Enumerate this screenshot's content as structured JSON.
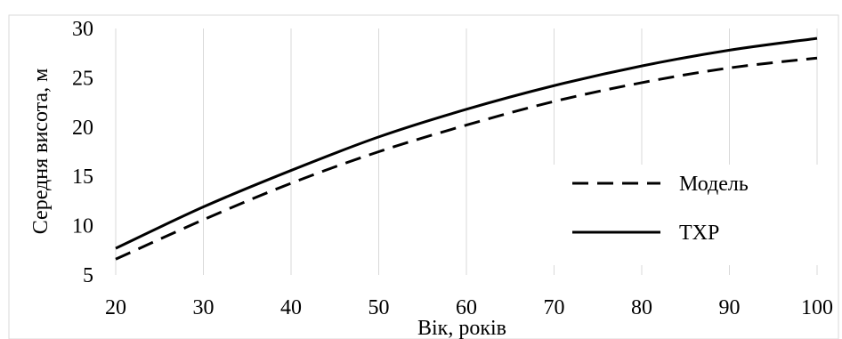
{
  "chart_data": {
    "type": "line",
    "title": "",
    "xlabel": "Вік, років",
    "ylabel": "Середня висота, м",
    "x": [
      20,
      30,
      40,
      50,
      60,
      70,
      80,
      90,
      100
    ],
    "series": [
      {
        "name": "Модель",
        "style": "dashed",
        "color": "#000000",
        "values": [
          6.6,
          10.6,
          14.3,
          17.5,
          20.2,
          22.6,
          24.5,
          26.0,
          27.0
        ]
      },
      {
        "name": "ТХР",
        "style": "solid",
        "color": "#000000",
        "values": [
          7.7,
          11.9,
          15.6,
          19.0,
          21.8,
          24.2,
          26.2,
          27.8,
          29.0
        ]
      }
    ],
    "xlim": [
      20,
      100
    ],
    "ylim": [
      5,
      30
    ],
    "xticks": [
      "20",
      "30",
      "40",
      "50",
      "60",
      "70",
      "80",
      "90",
      "100"
    ],
    "yticks": [
      "5",
      "10",
      "15",
      "20",
      "25",
      "30"
    ],
    "grid": {
      "vertical": true,
      "horizontal": false,
      "color": "#d9d9d9"
    },
    "legend": {
      "position": "right-center",
      "entries": [
        "Модель",
        "ТХР"
      ]
    }
  },
  "colors": {
    "background": "#ffffff",
    "grid": "#d9d9d9",
    "border": "#d9d9d9",
    "series": "#000000"
  }
}
